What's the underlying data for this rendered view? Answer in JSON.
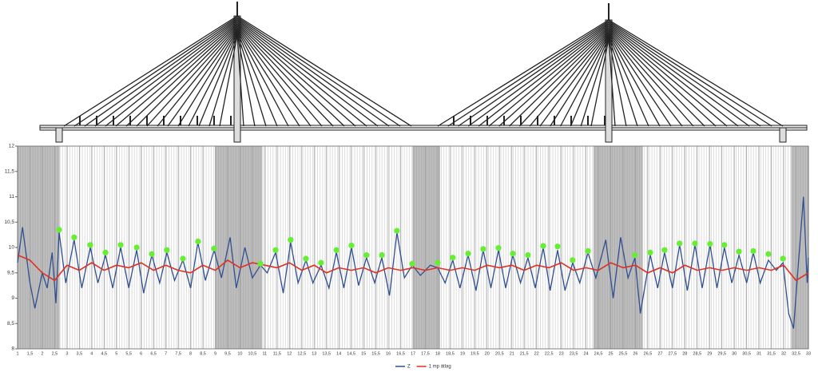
{
  "chart_data": {
    "type": "line",
    "ylim": [
      8,
      12
    ],
    "yticks": [
      8,
      {
        "value": 8.5,
        "label": "8,5"
      },
      9,
      {
        "value": 9.5,
        "label": "9,5"
      },
      10,
      {
        "value": 10.5,
        "label": "10,5"
      },
      11,
      {
        "value": 11.5,
        "label": "11,5"
      },
      12
    ],
    "xlim": [
      1,
      33
    ],
    "xticks": [
      1,
      {
        "value": 1.5,
        "label": "1,5"
      },
      2,
      {
        "value": 2.5,
        "label": "2,5"
      },
      3,
      {
        "value": 3.5,
        "label": "3,5"
      },
      4,
      {
        "value": 4.5,
        "label": "4,5"
      },
      5,
      {
        "value": 5.5,
        "label": "5,5"
      },
      6,
      {
        "value": 6.5,
        "label": "6,5"
      },
      7,
      {
        "value": 7.5,
        "label": "7,5"
      },
      8,
      {
        "value": 8.5,
        "label": "8,5"
      },
      9,
      {
        "value": 9.5,
        "label": "9,5"
      },
      10,
      {
        "value": 10.5,
        "label": "10,5"
      },
      11,
      {
        "value": 11.5,
        "label": "11,5"
      },
      12,
      {
        "value": 12.5,
        "label": "12,5"
      },
      13,
      {
        "value": 13.5,
        "label": "13,5"
      },
      14,
      {
        "value": 14.5,
        "label": "14,5"
      },
      15,
      {
        "value": 15.5,
        "label": "15,5"
      },
      16,
      {
        "value": 16.5,
        "label": "16,5"
      },
      17,
      {
        "value": 17.5,
        "label": "17,5"
      },
      18,
      {
        "value": 18.5,
        "label": "18,5"
      },
      19,
      {
        "value": 19.5,
        "label": "19,5"
      },
      20,
      {
        "value": 20.5,
        "label": "20,5"
      },
      21,
      {
        "value": 21.5,
        "label": "21,5"
      },
      22,
      {
        "value": 22.5,
        "label": "22,5"
      },
      23,
      {
        "value": 23.5,
        "label": "23,5"
      },
      24,
      {
        "value": 24.5,
        "label": "24,5"
      },
      25,
      {
        "value": 25.5,
        "label": "25,5"
      },
      26,
      {
        "value": 26.5,
        "label": "26,5"
      },
      27,
      {
        "value": 27.5,
        "label": "27,5"
      },
      28,
      {
        "value": 28.5,
        "label": "28,5"
      },
      29,
      {
        "value": 29.5,
        "label": "29,5"
      },
      30,
      {
        "value": 30.5,
        "label": "30,5"
      },
      31,
      {
        "value": 31.5,
        "label": "31,5"
      },
      32,
      {
        "value": 32.5,
        "label": "32,5"
      },
      33
    ],
    "grid": true,
    "shaded_ranges": [
      [
        1,
        2.7
      ],
      [
        9,
        10.9
      ],
      [
        17,
        18.1
      ],
      [
        24.3,
        26.3
      ],
      [
        32.3,
        33
      ]
    ],
    "series": [
      {
        "name": "Z",
        "color": "#2f4f8f",
        "x": [
          1,
          1.2,
          1.5,
          1.7,
          2.0,
          2.2,
          2.4,
          2.55,
          2.68,
          2.95,
          3.29,
          3.6,
          3.94,
          4.25,
          4.56,
          4.85,
          5.17,
          5.5,
          5.82,
          6.1,
          6.43,
          6.75,
          7.04,
          7.35,
          7.69,
          8.0,
          8.3,
          8.6,
          8.95,
          9.25,
          9.6,
          9.85,
          10.2,
          10.5,
          10.83,
          11.1,
          11.44,
          11.75,
          12.05,
          12.35,
          12.67,
          12.95,
          13.28,
          13.6,
          13.9,
          14.2,
          14.51,
          14.8,
          15.12,
          15.45,
          15.74,
          16.05,
          16.35,
          16.65,
          16.97,
          17.3,
          17.7,
          18.0,
          18.3,
          18.61,
          18.9,
          19.23,
          19.55,
          19.84,
          20.15,
          20.46,
          20.75,
          21.04,
          21.35,
          21.65,
          21.95,
          22.27,
          22.55,
          22.85,
          23.15,
          23.46,
          23.75,
          24.08,
          24.4,
          24.8,
          25.1,
          25.4,
          25.7,
          25.98,
          26.2,
          26.6,
          26.9,
          27.18,
          27.5,
          27.79,
          28.1,
          28.41,
          28.7,
          29.02,
          29.3,
          29.6,
          29.9,
          30.19,
          30.5,
          30.77,
          31.05,
          31.38,
          31.7,
          31.97,
          32.2,
          32.4,
          32.55,
          32.8,
          32.95,
          33
        ],
        "values": [
          9.7,
          10.4,
          9.3,
          8.8,
          9.5,
          9.2,
          9.9,
          8.9,
          10.3,
          9.3,
          10.15,
          9.2,
          10.0,
          9.3,
          9.85,
          9.2,
          10.0,
          9.2,
          9.95,
          9.1,
          9.85,
          9.3,
          9.9,
          9.35,
          9.75,
          9.2,
          10.1,
          9.35,
          9.95,
          9.4,
          10.2,
          9.2,
          10.0,
          9.4,
          9.65,
          9.5,
          9.9,
          9.1,
          10.1,
          9.3,
          9.75,
          9.3,
          9.65,
          9.2,
          9.9,
          9.2,
          10.0,
          9.25,
          9.8,
          9.3,
          9.8,
          9.05,
          10.3,
          9.4,
          9.65,
          9.45,
          9.65,
          9.6,
          9.3,
          9.75,
          9.2,
          9.85,
          9.15,
          9.95,
          9.2,
          9.95,
          9.2,
          9.85,
          9.3,
          9.8,
          9.2,
          10.0,
          9.15,
          9.95,
          9.15,
          9.7,
          9.3,
          9.9,
          9.4,
          10.15,
          9.0,
          10.2,
          9.4,
          9.8,
          8.7,
          9.85,
          9.2,
          9.9,
          9.2,
          10.05,
          9.15,
          10.05,
          9.2,
          10.05,
          9.2,
          10.0,
          9.3,
          9.85,
          9.3,
          9.9,
          9.3,
          9.75,
          9.55,
          9.7,
          8.7,
          8.4,
          9.4,
          11.0,
          9.3,
          9.8
        ]
      },
      {
        "name": "1 mp átlag",
        "color": "#e03020",
        "x": [
          1,
          1.5,
          2,
          2.5,
          3,
          3.5,
          4,
          4.5,
          5,
          5.5,
          6,
          6.5,
          7,
          7.5,
          8,
          8.5,
          9,
          9.5,
          10,
          10.5,
          11,
          11.5,
          12,
          12.5,
          13,
          13.5,
          14,
          14.5,
          15,
          15.5,
          16,
          16.5,
          17,
          17.5,
          18,
          18.5,
          19,
          19.5,
          20,
          20.5,
          21,
          21.5,
          22,
          22.5,
          23,
          23.5,
          24,
          24.5,
          25,
          25.5,
          26,
          26.5,
          27,
          27.5,
          28,
          28.5,
          29,
          29.5,
          30,
          30.5,
          31,
          31.5,
          32,
          32.5,
          33
        ],
        "values": [
          9.85,
          9.75,
          9.5,
          9.35,
          9.65,
          9.55,
          9.7,
          9.55,
          9.65,
          9.6,
          9.7,
          9.55,
          9.65,
          9.55,
          9.5,
          9.65,
          9.55,
          9.75,
          9.6,
          9.7,
          9.65,
          9.6,
          9.7,
          9.55,
          9.65,
          9.5,
          9.6,
          9.55,
          9.6,
          9.5,
          9.6,
          9.55,
          9.6,
          9.55,
          9.6,
          9.55,
          9.6,
          9.55,
          9.65,
          9.6,
          9.65,
          9.55,
          9.65,
          9.6,
          9.7,
          9.55,
          9.6,
          9.55,
          9.7,
          9.6,
          9.65,
          9.5,
          9.6,
          9.5,
          9.65,
          9.55,
          9.6,
          9.55,
          9.6,
          9.55,
          9.6,
          9.55,
          9.65,
          9.35,
          9.5
        ]
      }
    ],
    "peaks": {
      "color": "#66ee33",
      "x": [
        2.68,
        3.29,
        3.94,
        4.56,
        5.17,
        5.82,
        6.43,
        7.04,
        7.69,
        8.3,
        8.95,
        10.83,
        11.44,
        12.05,
        12.67,
        13.28,
        13.9,
        14.51,
        15.12,
        15.74,
        16.35,
        16.97,
        18.0,
        18.61,
        19.23,
        19.84,
        20.46,
        21.04,
        21.65,
        22.27,
        22.85,
        23.46,
        24.08,
        25.98,
        26.6,
        27.18,
        27.79,
        28.41,
        29.02,
        29.6,
        30.19,
        30.77,
        31.38,
        31.97
      ],
      "values": [
        10.35,
        10.2,
        10.05,
        9.9,
        10.05,
        10.0,
        9.87,
        9.95,
        9.78,
        10.12,
        9.98,
        9.68,
        9.95,
        10.15,
        9.78,
        9.7,
        9.95,
        10.04,
        9.85,
        9.85,
        10.33,
        9.68,
        9.7,
        9.8,
        9.88,
        9.97,
        9.99,
        9.88,
        9.85,
        10.03,
        10.02,
        9.75,
        9.93,
        9.85,
        9.9,
        9.95,
        10.08,
        10.08,
        10.07,
        10.05,
        9.92,
        9.93,
        9.87,
        9.78
      ]
    }
  }
}
